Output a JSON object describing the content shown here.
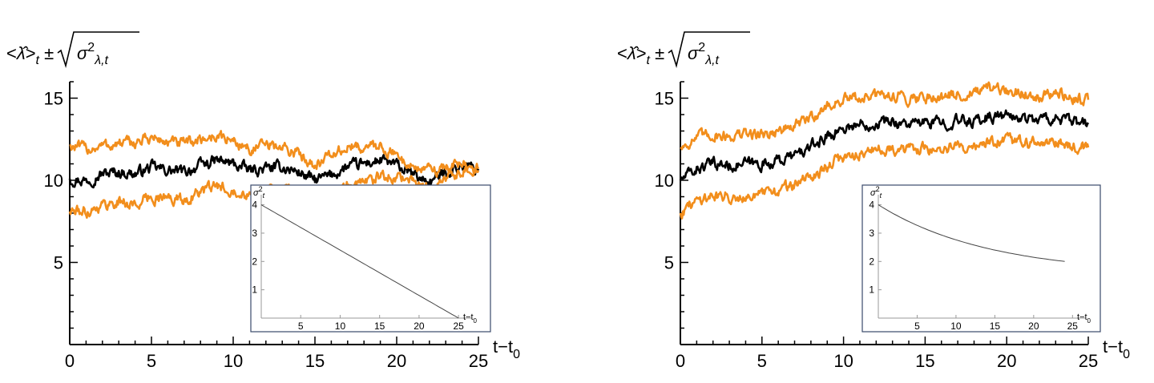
{
  "chart_data": [
    {
      "type": "line",
      "panel": "left",
      "ylabel": "<λ̂>t ± √σ²λ,t",
      "ylabel_parts": {
        "open": "<",
        "lambda": "λ̂",
        "close": ">",
        "t": "t",
        "pm": "±",
        "sigma": "σ",
        "sq": "2",
        "sub": "λ,t"
      },
      "xlabel": "t−t0",
      "xlabel_parts": {
        "main": "t−t",
        "sub": "0"
      },
      "xlim": [
        0,
        25
      ],
      "ylim": [
        0,
        16
      ],
      "xticks": [
        0,
        5,
        10,
        15,
        20,
        25
      ],
      "yticks": [
        5,
        10,
        15
      ],
      "x_knots": [
        0,
        1,
        2,
        3,
        4,
        5,
        6,
        7,
        8,
        9,
        10,
        11,
        12,
        13,
        14,
        15,
        16,
        17,
        18,
        19,
        20,
        21,
        22,
        23,
        24,
        25
      ],
      "series": [
        {
          "name": "mean",
          "color": "#000000",
          "values": [
            10.1,
            10.0,
            10.4,
            10.5,
            10.4,
            10.8,
            10.6,
            10.5,
            10.9,
            11.2,
            11.0,
            10.6,
            10.7,
            10.8,
            10.5,
            10.0,
            10.3,
            10.8,
            11.0,
            11.2,
            10.9,
            10.3,
            9.9,
            10.5,
            10.9,
            10.7
          ]
        },
        {
          "name": "mean_plus_sd",
          "color": "#F28E1C",
          "values": [
            12.1,
            11.9,
            12.1,
            12.2,
            12.3,
            12.6,
            12.3,
            12.2,
            12.5,
            12.7,
            12.4,
            11.9,
            12.1,
            12.0,
            11.6,
            11.0,
            11.5,
            12.0,
            12.0,
            12.1,
            11.5,
            10.8,
            10.6,
            10.8,
            11.0,
            10.7
          ]
        },
        {
          "name": "mean_minus_sd",
          "color": "#F28E1C",
          "values": [
            8.1,
            8.1,
            8.5,
            8.7,
            8.5,
            9.0,
            8.9,
            8.8,
            9.3,
            9.6,
            9.5,
            9.2,
            9.4,
            9.5,
            9.4,
            9.0,
            9.2,
            9.6,
            9.9,
            10.2,
            10.3,
            9.9,
            9.4,
            10.1,
            10.6,
            10.6
          ]
        }
      ],
      "inset": {
        "type": "line",
        "title": "σ²t",
        "title_parts": {
          "sigma": "σ",
          "sq": "2",
          "sub": "t"
        },
        "xlabel": "t−t0",
        "xlabel_parts": {
          "main": "t−t",
          "sub": "0"
        },
        "xlim": [
          0,
          26
        ],
        "ylim": [
          0,
          4.3
        ],
        "xticks": [
          5,
          10,
          15,
          20,
          25
        ],
        "yticks": [
          1,
          2,
          3,
          4
        ],
        "x": [
          0,
          25
        ],
        "values": [
          4,
          0
        ],
        "curve": "linear"
      }
    },
    {
      "type": "line",
      "panel": "right",
      "ylabel": "<λ̂>t ± √σ²λ,t",
      "ylabel_parts": {
        "open": "<",
        "lambda": "λ̂",
        "close": ">",
        "t": "t",
        "pm": "±",
        "sigma": "σ",
        "sq": "2",
        "sub": "λ,t"
      },
      "xlabel": "t−t0",
      "xlabel_parts": {
        "main": "t−t",
        "sub": "0"
      },
      "xlim": [
        0,
        25
      ],
      "ylim": [
        0,
        16
      ],
      "xticks": [
        0,
        5,
        10,
        15,
        20,
        25
      ],
      "yticks": [
        5,
        10,
        15
      ],
      "x_knots": [
        0,
        1,
        2,
        3,
        4,
        5,
        6,
        7,
        8,
        9,
        10,
        11,
        12,
        13,
        14,
        15,
        16,
        17,
        18,
        19,
        20,
        21,
        22,
        23,
        24,
        25
      ],
      "series": [
        {
          "name": "mean",
          "color": "#000000",
          "values": [
            10.0,
            10.7,
            11.0,
            10.9,
            11.0,
            11.0,
            11.2,
            11.5,
            12.0,
            12.7,
            13.2,
            13.4,
            13.5,
            13.6,
            13.4,
            13.5,
            13.5,
            13.6,
            13.6,
            13.9,
            13.9,
            13.8,
            13.7,
            13.8,
            13.5,
            13.4
          ]
        },
        {
          "name": "mean_plus_sd",
          "color": "#F28E1C",
          "values": [
            12.0,
            12.6,
            12.8,
            12.7,
            12.8,
            12.8,
            13.0,
            13.3,
            13.8,
            14.5,
            14.9,
            15.0,
            15.1,
            15.2,
            15.0,
            15.1,
            15.1,
            15.2,
            15.3,
            15.5,
            15.4,
            15.3,
            15.2,
            15.3,
            15.0,
            14.9
          ]
        },
        {
          "name": "mean_minus_sd",
          "color": "#F28E1C",
          "values": [
            8.0,
            8.8,
            9.1,
            9.0,
            9.1,
            9.1,
            9.4,
            9.7,
            10.2,
            10.9,
            11.4,
            11.7,
            11.8,
            12.0,
            11.8,
            11.9,
            11.9,
            12.0,
            12.1,
            12.3,
            12.4,
            12.3,
            12.2,
            12.3,
            12.1,
            12.0
          ]
        }
      ],
      "inset": {
        "type": "line",
        "title": "σ²t",
        "title_parts": {
          "sigma": "σ",
          "sq": "2",
          "sub": "t"
        },
        "xlabel": "t−t0",
        "xlabel_parts": {
          "main": "t−t",
          "sub": "0"
        },
        "xlim": [
          0,
          26
        ],
        "ylim": [
          0,
          4.3
        ],
        "xticks": [
          5,
          10,
          15,
          20,
          25
        ],
        "yticks": [
          1,
          2,
          3,
          4
        ],
        "x": [
          0,
          24
        ],
        "values": [
          4,
          2
        ],
        "curve": "decay"
      }
    }
  ]
}
